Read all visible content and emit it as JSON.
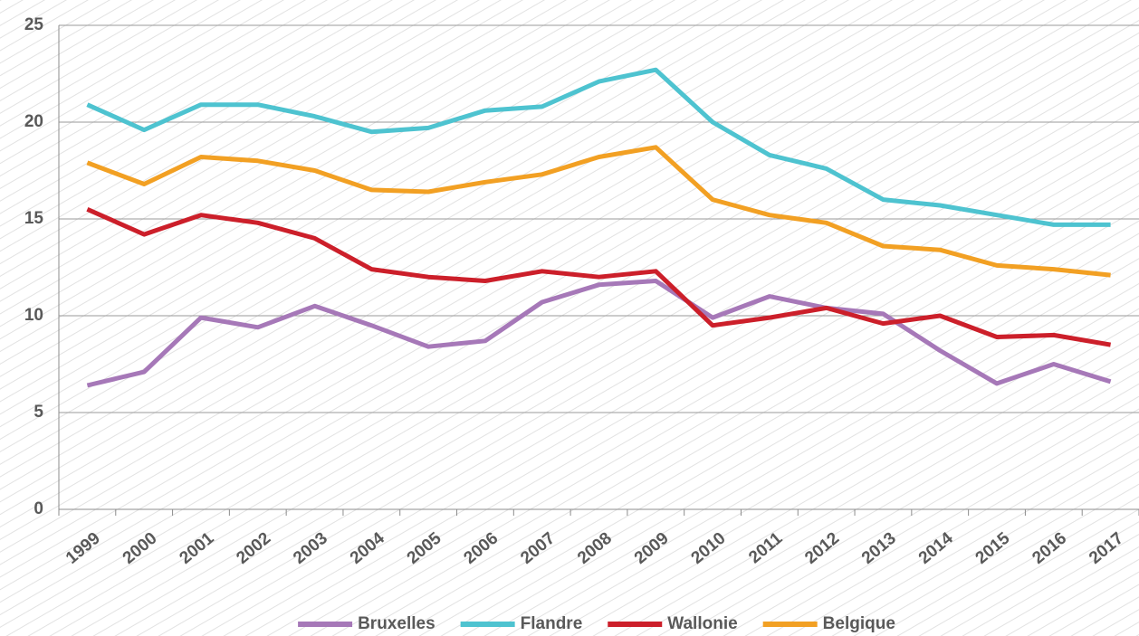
{
  "chart_data": {
    "type": "line",
    "categories": [
      "1999",
      "2000",
      "2001",
      "2002",
      "2003",
      "2004",
      "2005",
      "2006",
      "2007",
      "2008",
      "2009",
      "2010",
      "2011",
      "2012",
      "2013",
      "2014",
      "2015",
      "2016",
      "2017"
    ],
    "series": [
      {
        "name": "Bruxelles",
        "color": "#a678b8",
        "values": [
          6.4,
          7.1,
          9.9,
          9.4,
          10.5,
          9.5,
          8.4,
          8.7,
          10.7,
          11.6,
          11.8,
          9.9,
          11.0,
          10.4,
          10.1,
          8.2,
          6.5,
          7.5,
          6.6
        ]
      },
      {
        "name": "Flandre",
        "color": "#4ec3d0",
        "values": [
          20.9,
          19.6,
          20.9,
          20.9,
          20.3,
          19.5,
          19.7,
          20.6,
          20.8,
          22.1,
          22.7,
          20.0,
          18.3,
          17.6,
          16.0,
          15.7,
          15.2,
          14.7,
          14.7
        ]
      },
      {
        "name": "Wallonie",
        "color": "#cc1f2a",
        "values": [
          15.5,
          14.2,
          15.2,
          14.8,
          14.0,
          12.4,
          12.0,
          11.8,
          12.3,
          12.0,
          12.3,
          9.5,
          9.9,
          10.4,
          9.6,
          10.0,
          8.9,
          9.0,
          8.5
        ]
      },
      {
        "name": "Belgique",
        "color": "#f2a023",
        "values": [
          17.9,
          16.8,
          18.2,
          18.0,
          17.5,
          16.5,
          16.4,
          16.9,
          17.3,
          18.2,
          18.7,
          16.0,
          15.2,
          14.8,
          13.6,
          13.4,
          12.6,
          12.4,
          12.1
        ]
      }
    ],
    "ylim": [
      0,
      25
    ],
    "yticks": [
      0,
      5,
      10,
      15,
      20,
      25
    ],
    "grid": true,
    "legend": "bottom"
  }
}
